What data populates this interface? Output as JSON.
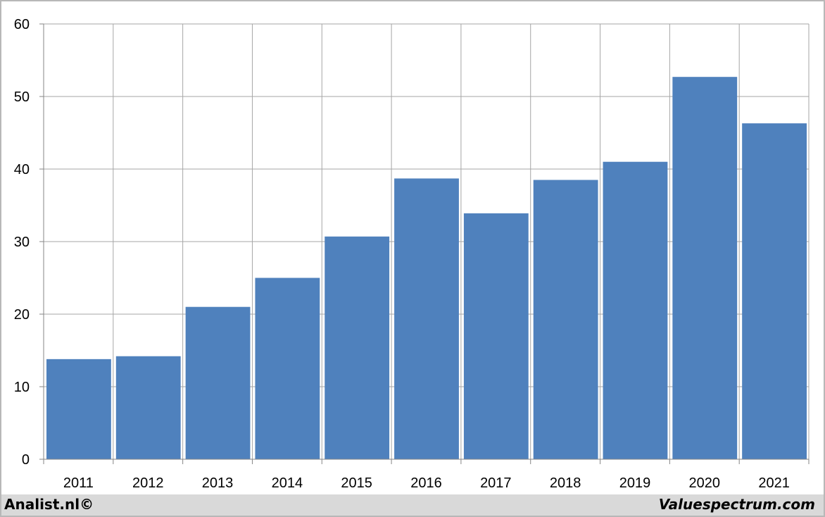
{
  "chart_data": {
    "type": "bar",
    "categories": [
      "2011",
      "2012",
      "2013",
      "2014",
      "2015",
      "2016",
      "2017",
      "2018",
      "2019",
      "2020",
      "2021"
    ],
    "values": [
      13.8,
      14.2,
      21.0,
      25.0,
      30.7,
      38.7,
      33.9,
      38.5,
      41.0,
      52.7,
      46.3
    ],
    "title": "",
    "xlabel": "",
    "ylabel": "",
    "ylim": [
      0,
      60
    ],
    "yticks": [
      "0",
      "10",
      "20",
      "30",
      "40",
      "50",
      "60"
    ],
    "grid": true,
    "bar_color": "#4f81bd",
    "grid_color": "#a6a6a6"
  },
  "footer": {
    "left": "Analist.nl©",
    "right": "Valuespectrum.com"
  }
}
